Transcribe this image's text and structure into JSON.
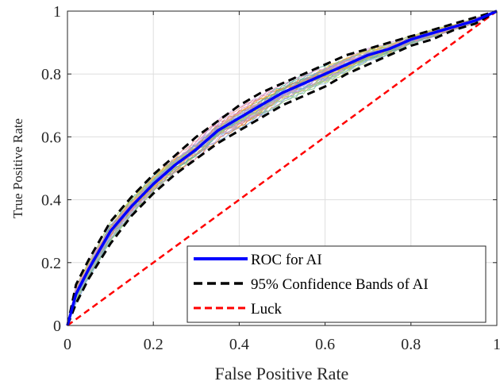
{
  "chart_data": {
    "type": "line",
    "title": "",
    "xlabel": "False Positive Rate",
    "ylabel": "True Positive Rate",
    "xlim": [
      0,
      1
    ],
    "ylim": [
      0,
      1
    ],
    "xticks": [
      0,
      0.2,
      0.4,
      0.6,
      0.8,
      1
    ],
    "yticks": [
      0,
      0.2,
      0.4,
      0.6,
      0.8,
      1
    ],
    "xtick_labels": [
      "0",
      "0.2",
      "0.4",
      "0.6",
      "0.8",
      "1"
    ],
    "ytick_labels": [
      "0",
      "0.2",
      "0.4",
      "0.6",
      "0.8",
      "1"
    ],
    "grid": true,
    "legend_position": "bottom-right",
    "series": [
      {
        "name": "ROC for AI",
        "color": "#0000ff",
        "style": "solid",
        "x": [
          0,
          0.02,
          0.05,
          0.1,
          0.15,
          0.2,
          0.25,
          0.3,
          0.35,
          0.4,
          0.45,
          0.5,
          0.55,
          0.6,
          0.65,
          0.7,
          0.75,
          0.8,
          0.85,
          0.9,
          0.95,
          1
        ],
        "y": [
          0,
          0.1,
          0.18,
          0.3,
          0.38,
          0.45,
          0.51,
          0.56,
          0.62,
          0.66,
          0.7,
          0.74,
          0.77,
          0.8,
          0.83,
          0.86,
          0.88,
          0.91,
          0.93,
          0.95,
          0.97,
          1
        ]
      },
      {
        "name": "95% Confidence Bands of AI",
        "color": "#000000",
        "style": "dashed",
        "x": [
          0,
          0.02,
          0.05,
          0.1,
          0.15,
          0.2,
          0.25,
          0.3,
          0.35,
          0.4,
          0.45,
          0.5,
          0.55,
          0.6,
          0.65,
          0.7,
          0.75,
          0.8,
          0.85,
          0.9,
          0.95,
          1
        ],
        "y": [
          0,
          0.13,
          0.21,
          0.33,
          0.41,
          0.48,
          0.54,
          0.6,
          0.65,
          0.7,
          0.74,
          0.77,
          0.8,
          0.83,
          0.86,
          0.88,
          0.9,
          0.92,
          0.94,
          0.96,
          0.98,
          1
        ]
      },
      {
        "name": "",
        "color": "#000000",
        "style": "dashed",
        "x": [
          0,
          0.02,
          0.05,
          0.1,
          0.15,
          0.2,
          0.25,
          0.3,
          0.35,
          0.4,
          0.45,
          0.5,
          0.55,
          0.6,
          0.65,
          0.7,
          0.75,
          0.8,
          0.85,
          0.9,
          0.95,
          1
        ],
        "y": [
          0,
          0.07,
          0.15,
          0.26,
          0.35,
          0.42,
          0.48,
          0.53,
          0.58,
          0.62,
          0.66,
          0.7,
          0.73,
          0.76,
          0.8,
          0.83,
          0.86,
          0.89,
          0.91,
          0.94,
          0.96,
          1
        ]
      },
      {
        "name": "Luck",
        "color": "#ff0000",
        "style": "dashed",
        "x": [
          0,
          1
        ],
        "y": [
          0,
          1
        ]
      }
    ],
    "bootstrap_band": {
      "count": 40,
      "colors": [
        "#e07b39",
        "#7fbf7f",
        "#8fb8de",
        "#c9a0dc",
        "#f0c040",
        "#5fb0a0",
        "#e88b8b",
        "#7aa6d6",
        "#b3d36b",
        "#d98ec5"
      ]
    }
  }
}
